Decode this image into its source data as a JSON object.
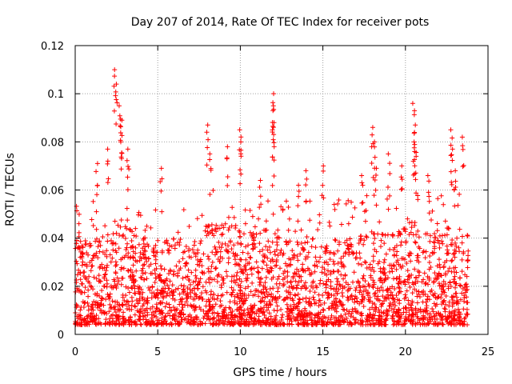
{
  "chart_data": {
    "type": "scatter",
    "title": "Day 207 of 2014, Rate Of TEC Index for receiver pots",
    "xlabel": "GPS time / hours",
    "ylabel": "ROTI / TECUs",
    "xlim": [
      0,
      25
    ],
    "ylim": [
      0,
      0.12
    ],
    "grid": true,
    "x_ticks": [
      0,
      5,
      10,
      15,
      20,
      25
    ],
    "x_tick_labels": [
      "0",
      "5",
      "10",
      "15",
      "20",
      "25"
    ],
    "y_ticks": [
      0,
      0.02,
      0.04,
      0.06,
      0.08,
      0.1,
      0.12
    ],
    "y_tick_labels": [
      "0",
      "0.02",
      "0.04",
      "0.06",
      "0.08",
      "0.1",
      "0.12"
    ],
    "marker": "+",
    "series": [
      {
        "name": "ROTI",
        "color": "#ff0000",
        "x_range_hours": [
          0,
          23.8
        ],
        "typical_range": [
          0.005,
          0.05
        ],
        "peaks": [
          {
            "x": 0.2,
            "y": 0.046
          },
          {
            "x": 1.3,
            "y": 0.071
          },
          {
            "x": 2.0,
            "y": 0.077
          },
          {
            "x": 2.4,
            "y": 0.11
          },
          {
            "x": 2.5,
            "y": 0.104
          },
          {
            "x": 2.7,
            "y": 0.095
          },
          {
            "x": 2.8,
            "y": 0.089
          },
          {
            "x": 2.8,
            "y": 0.08
          },
          {
            "x": 3.2,
            "y": 0.077
          },
          {
            "x": 5.2,
            "y": 0.069
          },
          {
            "x": 8.0,
            "y": 0.087
          },
          {
            "x": 8.2,
            "y": 0.075
          },
          {
            "x": 9.2,
            "y": 0.078
          },
          {
            "x": 10.0,
            "y": 0.085
          },
          {
            "x": 10.0,
            "y": 0.08
          },
          {
            "x": 11.2,
            "y": 0.064
          },
          {
            "x": 12.0,
            "y": 0.1
          },
          {
            "x": 12.0,
            "y": 0.095
          },
          {
            "x": 12.0,
            "y": 0.088
          },
          {
            "x": 12.0,
            "y": 0.078
          },
          {
            "x": 13.5,
            "y": 0.062
          },
          {
            "x": 14.0,
            "y": 0.068
          },
          {
            "x": 15.0,
            "y": 0.07
          },
          {
            "x": 17.4,
            "y": 0.066
          },
          {
            "x": 18.0,
            "y": 0.086
          },
          {
            "x": 18.1,
            "y": 0.08
          },
          {
            "x": 18.2,
            "y": 0.069
          },
          {
            "x": 19.0,
            "y": 0.075
          },
          {
            "x": 19.8,
            "y": 0.07
          },
          {
            "x": 20.5,
            "y": 0.096
          },
          {
            "x": 20.6,
            "y": 0.087
          },
          {
            "x": 20.5,
            "y": 0.08
          },
          {
            "x": 20.6,
            "y": 0.074
          },
          {
            "x": 21.4,
            "y": 0.066
          },
          {
            "x": 22.8,
            "y": 0.085
          },
          {
            "x": 22.8,
            "y": 0.077
          },
          {
            "x": 23.0,
            "y": 0.068
          },
          {
            "x": 23.5,
            "y": 0.082
          }
        ]
      }
    ]
  }
}
